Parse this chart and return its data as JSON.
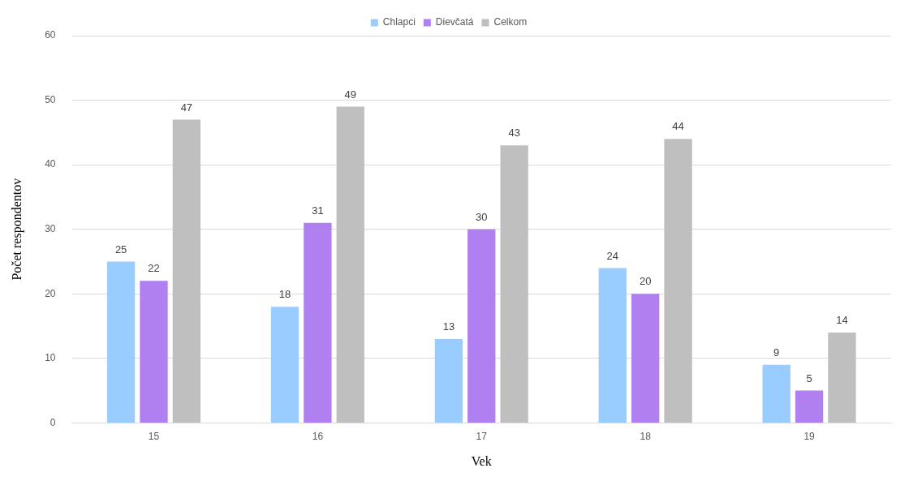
{
  "chart_data": {
    "type": "bar",
    "xlabel": "Vek",
    "ylabel": "Počet respondentov",
    "categories": [
      "15",
      "16",
      "17",
      "18",
      "19"
    ],
    "series": [
      {
        "name": "Chlapci",
        "color": "#99ccff",
        "values": [
          25,
          18,
          13,
          24,
          9
        ]
      },
      {
        "name": "Dievčatá",
        "color": "#b07ff0",
        "values": [
          22,
          31,
          30,
          20,
          5
        ]
      },
      {
        "name": "Celkom",
        "color": "#bfbfbf",
        "values": [
          47,
          49,
          43,
          44,
          14
        ]
      }
    ],
    "ylim": [
      0,
      60
    ],
    "yticks": [
      0,
      10,
      20,
      30,
      40,
      50,
      60
    ],
    "grid": "y",
    "legend": "top",
    "data_labels": true
  }
}
